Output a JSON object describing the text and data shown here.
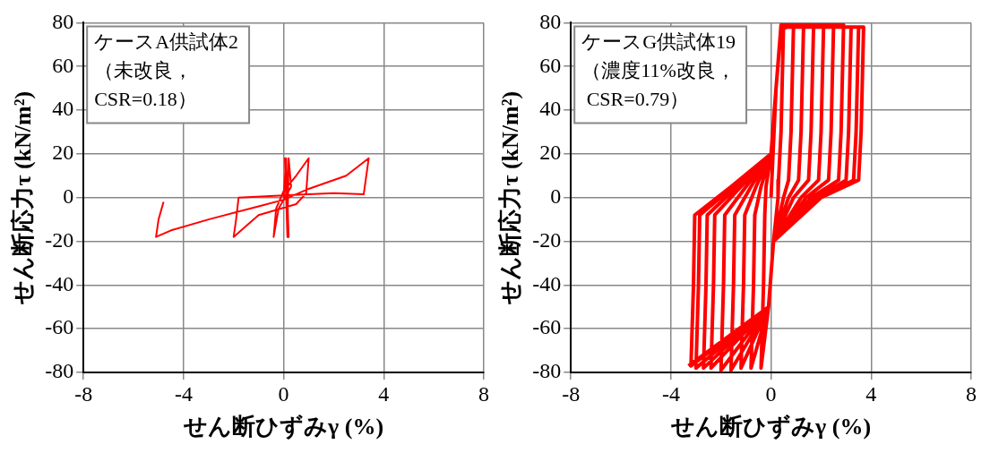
{
  "chart_data": [
    {
      "type": "line",
      "xlabel": "せん断ひずみγ (%)",
      "ylabel": "せん断応力τ (kN/m²)",
      "annotations": [
        "ケースA供試体2\n（未改良，\nCSR=0.18）"
      ],
      "xlim": [
        -8,
        8
      ],
      "xticks": [
        -8,
        -4,
        0,
        4,
        8
      ],
      "ylim": [
        -80,
        80
      ],
      "yticks": [
        -80,
        -60,
        -40,
        -20,
        0,
        20,
        40,
        60,
        80
      ],
      "grid": true,
      "series": [
        {
          "color": "#ff0000",
          "x": [
            0,
            0.1,
            0.15,
            0.05,
            0.2,
            0.1,
            0.15,
            0.2,
            0.3,
            -0.2,
            -0.4,
            -0.3,
            0,
            0.5,
            1.0,
            0.9,
            0.5,
            -1,
            -2,
            -1.9,
            -1.8,
            0,
            2,
            3.2,
            3.4,
            2.5,
            1,
            0,
            -1,
            -3,
            -4.5,
            -5.1,
            -5,
            -4.8
          ],
          "values": [
            0,
            18,
            -18,
            18,
            -18,
            18,
            -17,
            18,
            5,
            -5,
            -18,
            -5,
            3,
            10,
            18,
            2,
            -3,
            -8,
            -18,
            -10,
            0,
            1,
            2,
            1.5,
            18,
            10,
            4,
            -1,
            -4,
            -10,
            -15,
            -18,
            -10,
            -2
          ]
        }
      ]
    },
    {
      "type": "line",
      "xlabel": "せん断ひずみγ (%)",
      "ylabel": "せん断応力τ (kN/m²)",
      "annotations": [
        "ケースG供試体19\n（濃度11%改良，\n CSR=0.79）"
      ],
      "xlim": [
        -8,
        8
      ],
      "xticks": [
        -8,
        -4,
        0,
        4,
        8
      ],
      "ylim": [
        -80,
        80
      ],
      "yticks": [
        -80,
        -60,
        -40,
        -20,
        0,
        20,
        40,
        60,
        80
      ],
      "grid": true,
      "series": [
        {
          "color": "#ff0000",
          "x": [
            0,
            0.2,
            0.4,
            0.5,
            0.4,
            0.3,
            0.28,
            0.1,
            -0.1,
            -0.4,
            -0.3,
            -0.25,
            -0.2,
            0,
            0.2,
            0.4,
            0.9,
            0.8,
            0.7,
            0.5,
            0.1,
            -0.1,
            -0.8,
            -0.7,
            -0.65,
            -0.4,
            0,
            0.2,
            0.4,
            1.3,
            1.2,
            1.1,
            0.7,
            0.1,
            -0.1,
            -1.2,
            -1.1,
            -1.05,
            -0.6,
            0,
            0.2,
            0.4,
            1.7,
            1.6,
            1.5,
            0.9,
            0.1,
            -0.1,
            -1.6,
            -1.5,
            -1.45,
            -0.8,
            0,
            0.2,
            0.4,
            2.1,
            2.0,
            1.9,
            1.2,
            0.1,
            -0.1,
            -2.0,
            -1.9,
            -1.85,
            -1.0,
            0,
            0.2,
            0.4,
            2.5,
            2.4,
            2.3,
            1.4,
            0.1,
            -0.1,
            -2.4,
            -2.3,
            -2.25,
            -1.2,
            0,
            0.2,
            0.4,
            2.9,
            2.8,
            2.7,
            1.6,
            0.1,
            -0.1,
            -2.7,
            -2.6,
            -2.55,
            -1.35,
            0,
            0.2,
            0.4,
            3.2,
            3.1,
            3.0,
            1.8,
            0.1,
            -0.1,
            -3.0,
            -2.9,
            -2.85,
            -1.5,
            0,
            0.2,
            0.4,
            3.5,
            3.4,
            3.3,
            1.9,
            0.1,
            -0.1,
            -3.2,
            -3.1,
            -3.05,
            -1.6,
            0,
            0.2,
            0.4,
            3.7,
            3.6,
            3.5,
            2.0,
            0.1,
            -0.1,
            -3.3
          ],
          "values": [
            0,
            50,
            77,
            79,
            30,
            8,
            0,
            -20,
            -50,
            -78,
            -40,
            -8,
            5,
            20,
            50,
            77,
            79,
            30,
            8,
            0,
            -20,
            -50,
            -78,
            -40,
            -8,
            5,
            20,
            50,
            78,
            78,
            30,
            8,
            0,
            -20,
            -50,
            -78,
            -40,
            -8,
            5,
            20,
            50,
            78,
            78,
            30,
            8,
            0,
            -20,
            -50,
            -79,
            -40,
            -8,
            5,
            20,
            50,
            78,
            78,
            30,
            8,
            0,
            -20,
            -50,
            -79,
            -40,
            -8,
            5,
            20,
            50,
            79,
            79,
            30,
            8,
            0,
            -20,
            -50,
            -78,
            -40,
            -8,
            5,
            20,
            50,
            79,
            79,
            30,
            8,
            0,
            -20,
            -50,
            -78,
            -40,
            -8,
            5,
            20,
            50,
            79,
            78,
            30,
            8,
            0,
            -20,
            -50,
            -78,
            -40,
            -8,
            5,
            20,
            50,
            78,
            78,
            30,
            8,
            0,
            -20,
            -50,
            -77,
            -40,
            -8,
            5,
            20,
            50,
            78,
            78,
            30,
            8,
            0,
            -20,
            -50,
            -77
          ]
        }
      ]
    }
  ]
}
